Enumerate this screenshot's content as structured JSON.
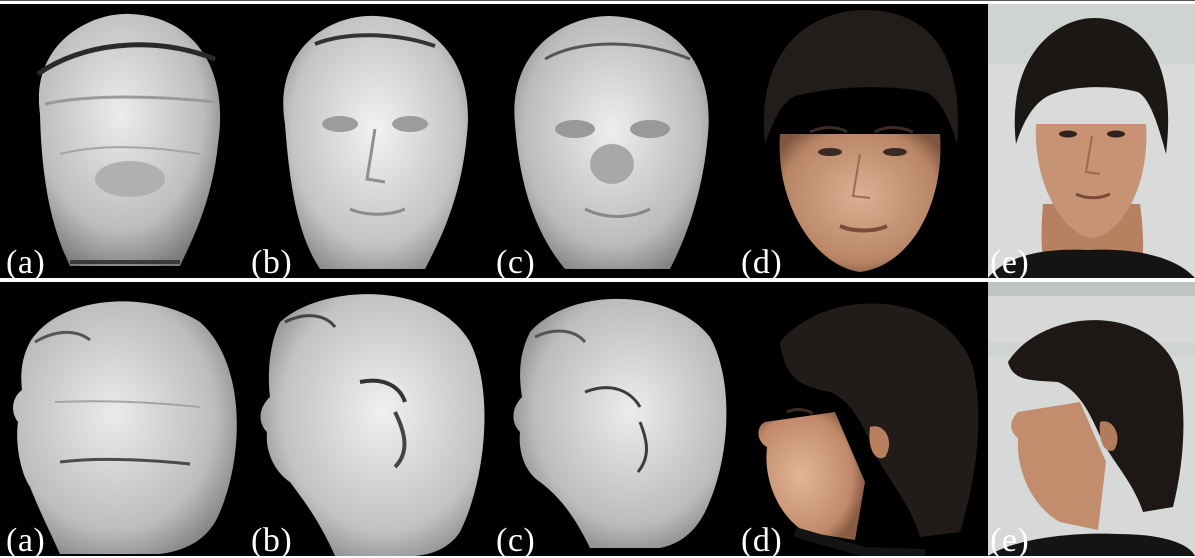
{
  "rows": [
    {
      "view": "frontal",
      "panels": [
        {
          "label": "(a)",
          "kind": "untextured-mesh"
        },
        {
          "label": "(b)",
          "kind": "untextured-mesh"
        },
        {
          "label": "(c)",
          "kind": "untextured-mesh"
        },
        {
          "label": "(d)",
          "kind": "textured-mesh"
        },
        {
          "label": "(e)",
          "kind": "photograph"
        }
      ]
    },
    {
      "view": "profile",
      "panels": [
        {
          "label": "(a)",
          "kind": "untextured-mesh"
        },
        {
          "label": "(b)",
          "kind": "untextured-mesh"
        },
        {
          "label": "(c)",
          "kind": "untextured-mesh"
        },
        {
          "label": "(d)",
          "kind": "textured-mesh"
        },
        {
          "label": "(e)",
          "kind": "photograph"
        }
      ]
    }
  ],
  "colors": {
    "background": "#000000",
    "mesh": "#c9c9c9",
    "skin": "#c99a7a",
    "hair": "#1e1a17",
    "photo_bg": "#d7d9d8",
    "label": "#ffffff"
  }
}
